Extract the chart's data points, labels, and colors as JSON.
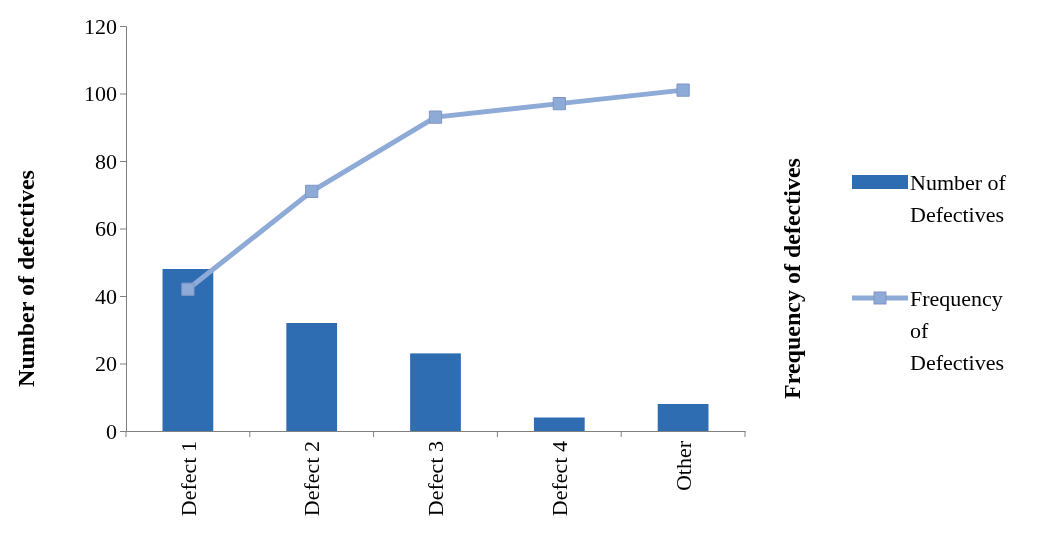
{
  "chart_data": {
    "type": "bar",
    "ylabel": "Number of defectives",
    "y2label": "Frequency of defectives",
    "categories": [
      "Defect 1",
      "Defect 2",
      "Defect 3",
      "Defect 4",
      "Other"
    ],
    "series": [
      {
        "name": "Number of Defectives",
        "color": "#2f6db3",
        "values": [
          48,
          32,
          23,
          4,
          8
        ]
      },
      {
        "name": "Frequency of Defectives",
        "type": "line",
        "color": "#8eaad6",
        "marker": "square",
        "values": [
          42,
          71,
          93,
          97,
          101
        ]
      }
    ],
    "ylim": [
      0,
      120
    ],
    "yticks": [
      0,
      20,
      40,
      60,
      80,
      100,
      120
    ],
    "legend": "right",
    "grid": false
  }
}
